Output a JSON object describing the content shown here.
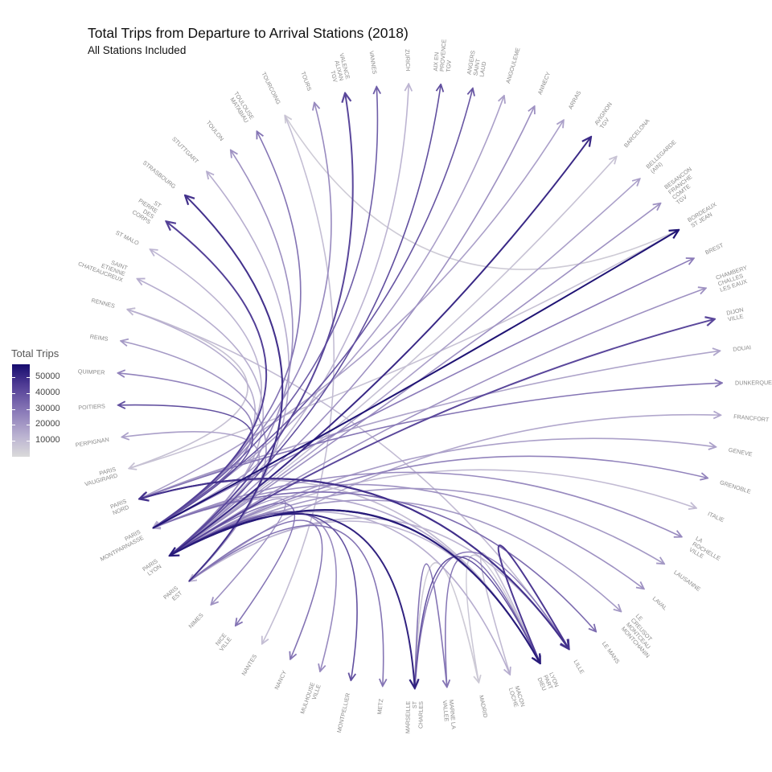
{
  "chart_data": {
    "type": "chord",
    "title": "Total Trips from Departure to Arrival Stations (2018)",
    "subtitle": "All Stations Included",
    "legend": {
      "title": "Total Trips",
      "placement": "left",
      "range": [
        0,
        58000
      ],
      "ticks": [
        10000,
        20000,
        30000,
        40000,
        50000
      ],
      "tick_labels": [
        "10000",
        "20000",
        "30000",
        "40000",
        "50000"
      ],
      "low_color": "#d9d9d9",
      "high_color": "#160c6e"
    },
    "stations": [
      "AIX EN PROVENCE TGV",
      "ANGERS SAINT LAUD",
      "ANGOULEME",
      "ANNECY",
      "ARRAS",
      "AVIGNON TGV",
      "BARCELONA",
      "BELLEGARDE (AIN)",
      "BESANCON FRANCHE COMTE TGV",
      "BORDEAUX ST JEAN",
      "BREST",
      "CHAMBERY CHALLES LES EAUX",
      "DIJON VILLE",
      "DOUAI",
      "DUNKERQUE",
      "FRANCFORT",
      "GENEVE",
      "GRENOBLE",
      "ITALIE",
      "LA ROCHELLE VILLE",
      "LAUSANNE",
      "LAVAL",
      "LE CREUSOT MONTCEAU MONTCHANIN",
      "LE MANS",
      "LILLE",
      "LYON PART DIEU",
      "MACON LOCHE",
      "MADRID",
      "MARNE LA VALLEE",
      "MARSEILLE ST CHARLES",
      "METZ",
      "MONTPELLIER",
      "MULHOUSE VILLE",
      "NANCY",
      "NANTES",
      "NICE VILLE",
      "NIMES",
      "PARIS EST",
      "PARIS LYON",
      "PARIS MONTPARNASSE",
      "PARIS NORD",
      "PARIS VAUGIRARD",
      "PERPIGNAN",
      "POITIERS",
      "QUIMPER",
      "REIMS",
      "RENNES",
      "SAINT ETIENNE CHATEAUCREUX",
      "ST MALO",
      "ST PIERRE DES CORPS",
      "STRASBOURG",
      "STUTTGART",
      "TOULON",
      "TOULOUSE MATABIAU",
      "TOURCOING",
      "TOURS",
      "VALENCE ALIXAN TGV",
      "VANNES",
      "ZURICH"
    ],
    "station_display": [
      [
        "AIX EN",
        "PROVENCE",
        "TGV"
      ],
      [
        "ANGERS",
        "SAINT",
        "LAUD"
      ],
      [
        "ANGOULEME"
      ],
      [
        "ANNECY"
      ],
      [
        "ARRAS"
      ],
      [
        "AVIGNON",
        "TGV"
      ],
      [
        "BARCELONA"
      ],
      [
        "BELLEGARDE",
        "(AIN)"
      ],
      [
        "BESANCON",
        "FRANCHE",
        "COMTE",
        "TGV"
      ],
      [
        "BORDEAUX",
        "ST JEAN"
      ],
      [
        "BREST"
      ],
      [
        "CHAMBERY",
        "CHALLES",
        "LES EAUX"
      ],
      [
        "DIJON",
        "VILLE"
      ],
      [
        "DOUAI"
      ],
      [
        "DUNKERQUE"
      ],
      [
        "FRANCFORT"
      ],
      [
        "GENEVE"
      ],
      [
        "GRENOBLE"
      ],
      [
        "ITALIE"
      ],
      [
        "LA",
        "ROCHELLE",
        "VILLE"
      ],
      [
        "LAUSANNE"
      ],
      [
        "LAVAL"
      ],
      [
        "LE",
        "CREUSOT",
        "MONTCEAU",
        "MONTCHANIN"
      ],
      [
        "LE MANS"
      ],
      [
        "LILLE"
      ],
      [
        "LYON",
        "PART",
        "DIEU"
      ],
      [
        "MACON",
        "LOCHE"
      ],
      [
        "MADRID"
      ],
      [
        "MARNE LA",
        "VALLEE"
      ],
      [
        "MARSEILLE",
        "ST",
        "CHARLES"
      ],
      [
        "METZ"
      ],
      [
        "MONTPELLIER"
      ],
      [
        "MULHOUSE",
        "VILLE"
      ],
      [
        "NANCY"
      ],
      [
        "NANTES"
      ],
      [
        "NICE",
        "VILLE"
      ],
      [
        "NIMES"
      ],
      [
        "PARIS",
        "EST"
      ],
      [
        "PARIS",
        "LYON"
      ],
      [
        "PARIS",
        "MONTPARNASSE"
      ],
      [
        "PARIS",
        "NORD"
      ],
      [
        "PARIS",
        "VAUGIRARD"
      ],
      [
        "PERPIGNAN"
      ],
      [
        "POITIERS"
      ],
      [
        "QUIMPER"
      ],
      [
        "REIMS"
      ],
      [
        "RENNES"
      ],
      [
        "SAINT",
        "ETIENNE",
        "CHATEAUCREUX"
      ],
      [
        "ST MALO"
      ],
      [
        "ST",
        "PIERRE",
        "DES",
        "CORPS"
      ],
      [
        "STRASBOURG"
      ],
      [
        "STUTTGART"
      ],
      [
        "TOULON"
      ],
      [
        "TOULOUSE",
        "MATABIAU"
      ],
      [
        "TOURCOING"
      ],
      [
        "TOURS"
      ],
      [
        "VALENCE",
        "ALIXAN",
        "TGV"
      ],
      [
        "VANNES"
      ],
      [
        "ZURICH"
      ]
    ],
    "links": [
      {
        "from": "PARIS LYON",
        "to": "AIX EN PROVENCE TGV",
        "trips": 40000
      },
      {
        "from": "PARIS MONTPARNASSE",
        "to": "ANGERS SAINT LAUD",
        "trips": 38000
      },
      {
        "from": "PARIS MONTPARNASSE",
        "to": "ANGOULEME",
        "trips": 18000
      },
      {
        "from": "PARIS LYON",
        "to": "ANNECY",
        "trips": 22000
      },
      {
        "from": "PARIS NORD",
        "to": "ARRAS",
        "trips": 18000
      },
      {
        "from": "PARIS LYON",
        "to": "AVIGNON TGV",
        "trips": 50000
      },
      {
        "from": "PARIS LYON",
        "to": "BARCELONA",
        "trips": 8000
      },
      {
        "from": "PARIS LYON",
        "to": "BELLEGARDE (AIN)",
        "trips": 18000
      },
      {
        "from": "PARIS LYON",
        "to": "BESANCON FRANCHE COMTE TGV",
        "trips": 22000
      },
      {
        "from": "PARIS MONTPARNASSE",
        "to": "BORDEAUX ST JEAN",
        "trips": 56000
      },
      {
        "from": "PARIS MONTPARNASSE",
        "to": "BREST",
        "trips": 28000
      },
      {
        "from": "PARIS LYON",
        "to": "CHAMBERY CHALLES LES EAUX",
        "trips": 22000
      },
      {
        "from": "PARIS LYON",
        "to": "DIJON VILLE",
        "trips": 42000
      },
      {
        "from": "PARIS NORD",
        "to": "DOUAI",
        "trips": 17000
      },
      {
        "from": "PARIS NORD",
        "to": "DUNKERQUE",
        "trips": 30000
      },
      {
        "from": "PARIS EST",
        "to": "FRANCFORT",
        "trips": 16000
      },
      {
        "from": "PARIS LYON",
        "to": "GENEVE",
        "trips": 18000
      },
      {
        "from": "PARIS LYON",
        "to": "GRENOBLE",
        "trips": 26000
      },
      {
        "from": "PARIS LYON",
        "to": "ITALIE",
        "trips": 10000
      },
      {
        "from": "PARIS MONTPARNASSE",
        "to": "LA ROCHELLE VILLE",
        "trips": 24000
      },
      {
        "from": "PARIS LYON",
        "to": "LAUSANNE",
        "trips": 20000
      },
      {
        "from": "PARIS MONTPARNASSE",
        "to": "LAVAL",
        "trips": 22000
      },
      {
        "from": "PARIS LYON",
        "to": "LE CREUSOT MONTCEAU MONTCHANIN",
        "trips": 20000
      },
      {
        "from": "PARIS MONTPARNASSE",
        "to": "LE MANS",
        "trips": 32000
      },
      {
        "from": "PARIS NORD",
        "to": "LILLE",
        "trips": 48000
      },
      {
        "from": "PARIS LYON",
        "to": "LYON PART DIEU",
        "trips": 54000
      },
      {
        "from": "PARIS LYON",
        "to": "MACON LOCHE",
        "trips": 14000
      },
      {
        "from": "MARSEILLE ST CHARLES",
        "to": "MADRID",
        "trips": 5000
      },
      {
        "from": "MARSEILLE ST CHARLES",
        "to": "MARNE LA VALLEE",
        "trips": 30000
      },
      {
        "from": "PARIS LYON",
        "to": "MARSEILLE ST CHARLES",
        "trips": 52000
      },
      {
        "from": "PARIS EST",
        "to": "METZ",
        "trips": 30000
      },
      {
        "from": "PARIS LYON",
        "to": "MONTPELLIER",
        "trips": 40000
      },
      {
        "from": "PARIS LYON",
        "to": "MULHOUSE VILLE",
        "trips": 24000
      },
      {
        "from": "PARIS EST",
        "to": "NANCY",
        "trips": 30000
      },
      {
        "from": "TOURCOING",
        "to": "NANTES",
        "trips": 9000
      },
      {
        "from": "PARIS LYON",
        "to": "NICE VILLE",
        "trips": 30000
      },
      {
        "from": "PARIS LYON",
        "to": "NIMES",
        "trips": 22000
      },
      {
        "from": "LYON PART DIEU",
        "to": "PARIS EST",
        "trips": 12000
      },
      {
        "from": "LYON PART DIEU",
        "to": "PARIS LYON",
        "trips": 54000
      },
      {
        "from": "LYON PART DIEU",
        "to": "PARIS MONTPARNASSE",
        "trips": 16000
      },
      {
        "from": "LILLE",
        "to": "PARIS NORD",
        "trips": 48000
      },
      {
        "from": "RENNES",
        "to": "PARIS VAUGIRARD",
        "trips": 8000
      },
      {
        "from": "PARIS LYON",
        "to": "PERPIGNAN",
        "trips": 18000
      },
      {
        "from": "PARIS MONTPARNASSE",
        "to": "POITIERS",
        "trips": 40000
      },
      {
        "from": "PARIS MONTPARNASSE",
        "to": "QUIMPER",
        "trips": 26000
      },
      {
        "from": "PARIS EST",
        "to": "REIMS",
        "trips": 20000
      },
      {
        "from": "LILLE",
        "to": "RENNES",
        "trips": 10000
      },
      {
        "from": "PARIS LYON",
        "to": "SAINT ETIENNE CHATEAUCREUX",
        "trips": 14000
      },
      {
        "from": "PARIS MONTPARNASSE",
        "to": "ST MALO",
        "trips": 12000
      },
      {
        "from": "PARIS MONTPARNASSE",
        "to": "ST PIERRE DES CORPS",
        "trips": 44000
      },
      {
        "from": "PARIS EST",
        "to": "STRASBOURG",
        "trips": 48000
      },
      {
        "from": "PARIS EST",
        "to": "STUTTGART",
        "trips": 14000
      },
      {
        "from": "PARIS LYON",
        "to": "TOULON",
        "trips": 22000
      },
      {
        "from": "PARIS MONTPARNASSE",
        "to": "TOULOUSE MATABIAU",
        "trips": 30000
      },
      {
        "from": "BORDEAUX ST JEAN",
        "to": "TOURCOING",
        "trips": 5000
      },
      {
        "from": "PARIS MONTPARNASSE",
        "to": "TOURS",
        "trips": 24000
      },
      {
        "from": "PARIS LYON",
        "to": "VALENCE ALIXAN TGV",
        "trips": 42000
      },
      {
        "from": "PARIS MONTPARNASSE",
        "to": "VANNES",
        "trips": 36000
      },
      {
        "from": "PARIS LYON",
        "to": "ZURICH",
        "trips": 12000
      },
      {
        "from": "RENNES",
        "to": "PARIS MONTPARNASSE",
        "trips": 14000
      },
      {
        "from": "PARIS VAUGIRARD",
        "to": "BORDEAUX ST JEAN",
        "trips": 8000
      },
      {
        "from": "PARIS VAUGIRARD",
        "to": "RENNES",
        "trips": 6000
      },
      {
        "from": "MARNE LA VALLEE",
        "to": "LYON PART DIEU",
        "trips": 30000
      },
      {
        "from": "MACON LOCHE",
        "to": "LYON PART DIEU",
        "trips": 10000
      },
      {
        "from": "MADRID",
        "to": "LYON PART DIEU",
        "trips": 6000
      },
      {
        "from": "MARSEILLE ST CHARLES",
        "to": "LYON PART DIEU",
        "trips": 40000
      },
      {
        "from": "MARSEILLE ST CHARLES",
        "to": "LILLE",
        "trips": 28000
      },
      {
        "from": "LYON PART DIEU",
        "to": "LILLE",
        "trips": 46000
      },
      {
        "from": "LYON PART DIEU",
        "to": "PARIS NORD",
        "trips": 10000
      },
      {
        "from": "LILLE",
        "to": "PARIS EST",
        "trips": 12000
      },
      {
        "from": "MADRID",
        "to": "MARSEILLE ST CHARLES",
        "trips": 5000
      },
      {
        "from": "PARIS MONTPARNASSE",
        "to": "PARIS NORD",
        "trips": 20000
      }
    ]
  }
}
